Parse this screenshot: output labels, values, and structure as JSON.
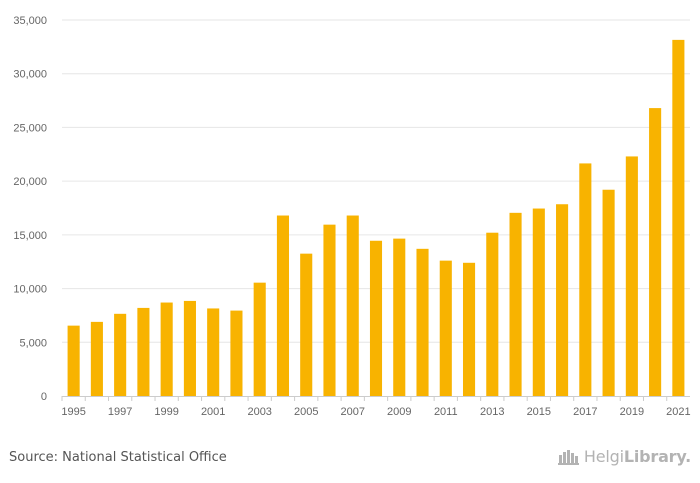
{
  "chart_data": {
    "type": "bar",
    "categories": [
      "1995",
      "1996",
      "1997",
      "1998",
      "1999",
      "2000",
      "2001",
      "2002",
      "2003",
      "2004",
      "2005",
      "2006",
      "2007",
      "2008",
      "2009",
      "2010",
      "2011",
      "2012",
      "2013",
      "2014",
      "2015",
      "2016",
      "2017",
      "2018",
      "2019",
      "2020",
      "2021"
    ],
    "values": [
      6550,
      6900,
      7650,
      8200,
      8700,
      8850,
      8150,
      7950,
      10550,
      16800,
      13250,
      15950,
      16800,
      14450,
      14650,
      13700,
      12600,
      12400,
      15200,
      17050,
      17450,
      17850,
      21650,
      19200,
      22300,
      26800,
      33150
    ],
    "title": "",
    "xlabel": "",
    "ylabel": "",
    "ylim": [
      0,
      35000
    ],
    "yticks": [
      "0",
      "5,000",
      "10,000",
      "15,000",
      "20,000",
      "25,000",
      "30,000",
      "35,000"
    ],
    "ytick_values": [
      0,
      5000,
      10000,
      15000,
      20000,
      25000,
      30000,
      35000
    ],
    "xtick_labels": [
      "1995",
      "1997",
      "1999",
      "2001",
      "2003",
      "2005",
      "2007",
      "2009",
      "2011",
      "2013",
      "2015",
      "2017",
      "2019",
      "2021"
    ],
    "bar_color": "#F8B300",
    "grid": true
  },
  "footer": {
    "source": "Source: National Statistical Office",
    "logo_regular": "Helgi",
    "logo_bold": "Library."
  },
  "colors": {
    "grid": "#e6e6e6",
    "axis_text": "#666666",
    "logo": "#b3b3b3"
  },
  "icons": {
    "logo_mark": "city-skyline-icon"
  }
}
